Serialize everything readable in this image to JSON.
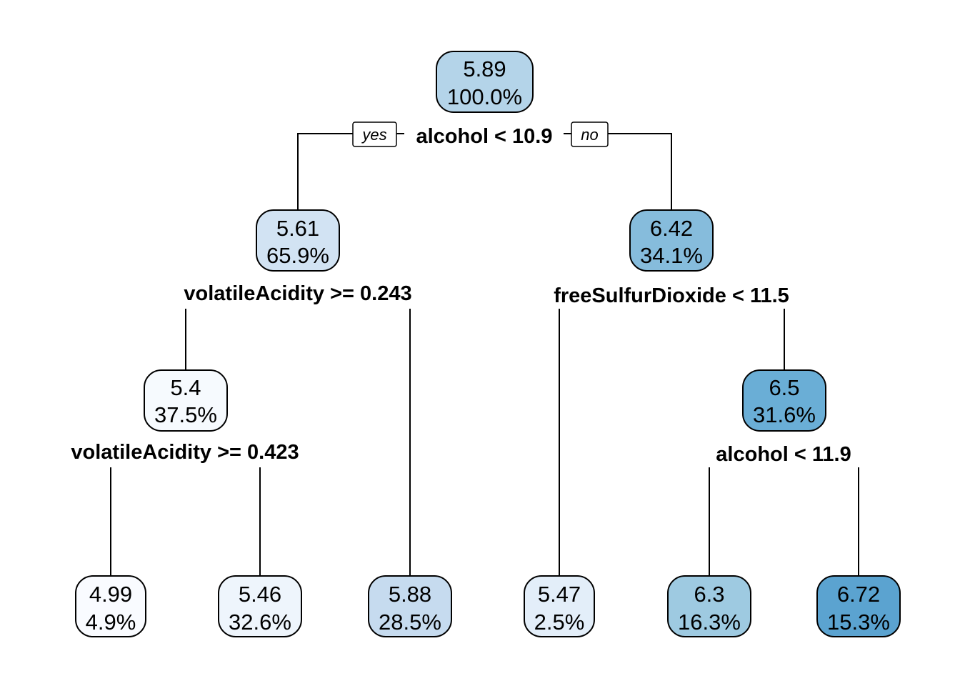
{
  "tree": {
    "yes_label": "yes",
    "no_label": "no",
    "nodes": [
      {
        "id": "n1",
        "value": "5.89",
        "percent": "100.0%",
        "color": "#b4d4e9"
      },
      {
        "id": "n2",
        "value": "5.61",
        "percent": "65.9%",
        "color": "#d2e3f3"
      },
      {
        "id": "n3",
        "value": "6.42",
        "percent": "34.1%",
        "color": "#86bcdc"
      },
      {
        "id": "n4",
        "value": "5.4",
        "percent": "37.5%",
        "color": "#f6fafe"
      },
      {
        "id": "n5",
        "value": "6.5",
        "percent": "31.6%",
        "color": "#6aaed6"
      },
      {
        "id": "l1",
        "value": "4.99",
        "percent": "4.9%",
        "color": "#f9fbff"
      },
      {
        "id": "l2",
        "value": "5.46",
        "percent": "32.6%",
        "color": "#eef5fc"
      },
      {
        "id": "l3",
        "value": "5.88",
        "percent": "28.5%",
        "color": "#c6dbef"
      },
      {
        "id": "l4",
        "value": "5.47",
        "percent": "2.5%",
        "color": "#e3eef9"
      },
      {
        "id": "l5",
        "value": "6.3",
        "percent": "16.3%",
        "color": "#9ecae1"
      },
      {
        "id": "l6",
        "value": "6.72",
        "percent": "15.3%",
        "color": "#5ba3d0"
      }
    ],
    "splits": [
      {
        "id": "s1",
        "text": "alcohol < 10.9"
      },
      {
        "id": "s2",
        "text": "volatileAcidity >= 0.243"
      },
      {
        "id": "s3",
        "text": "freeSulfurDioxide < 11.5"
      },
      {
        "id": "s4",
        "text": "volatileAcidity >= 0.423"
      },
      {
        "id": "s5",
        "text": "alcohol < 11.9"
      }
    ]
  }
}
